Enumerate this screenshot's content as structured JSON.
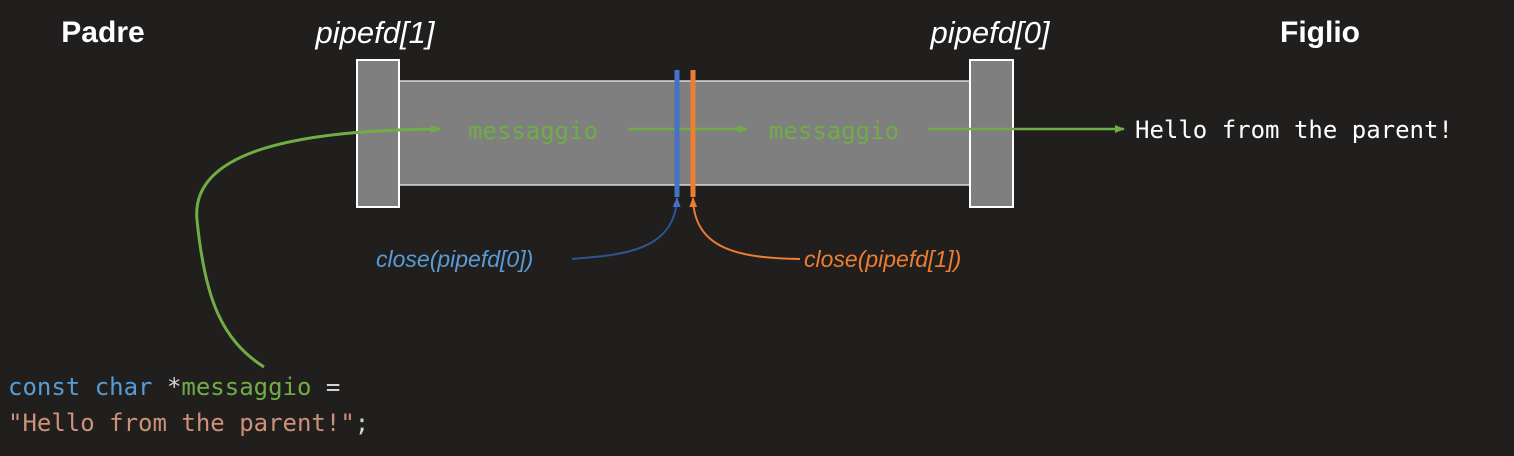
{
  "headers": {
    "parent": "Padre",
    "child": "Figlio"
  },
  "fd_labels": {
    "write_end": "pipefd[1]",
    "read_end": "pipefd[0]"
  },
  "pipe": {
    "message_left": "messaggio",
    "message_right": "messaggio"
  },
  "output": "Hello from the parent!",
  "close_calls": {
    "parent": "close(pipefd[0])",
    "child": "close(pipefd[1])"
  },
  "code": {
    "kw_const": "const",
    "kw_char": "char",
    "star": " *",
    "var": "messaggio",
    "eq": " =",
    "string": "\"Hello from the parent!\"",
    "semicolon": ";"
  },
  "colors": {
    "background": "#211f1e",
    "pipe": "#7f7f7f",
    "message": "#70ad47",
    "parent_close": "#4472c4",
    "child_close": "#ed7d31",
    "keyword": "#569cd6",
    "string": "#ce9178",
    "text": "#ffffff"
  }
}
